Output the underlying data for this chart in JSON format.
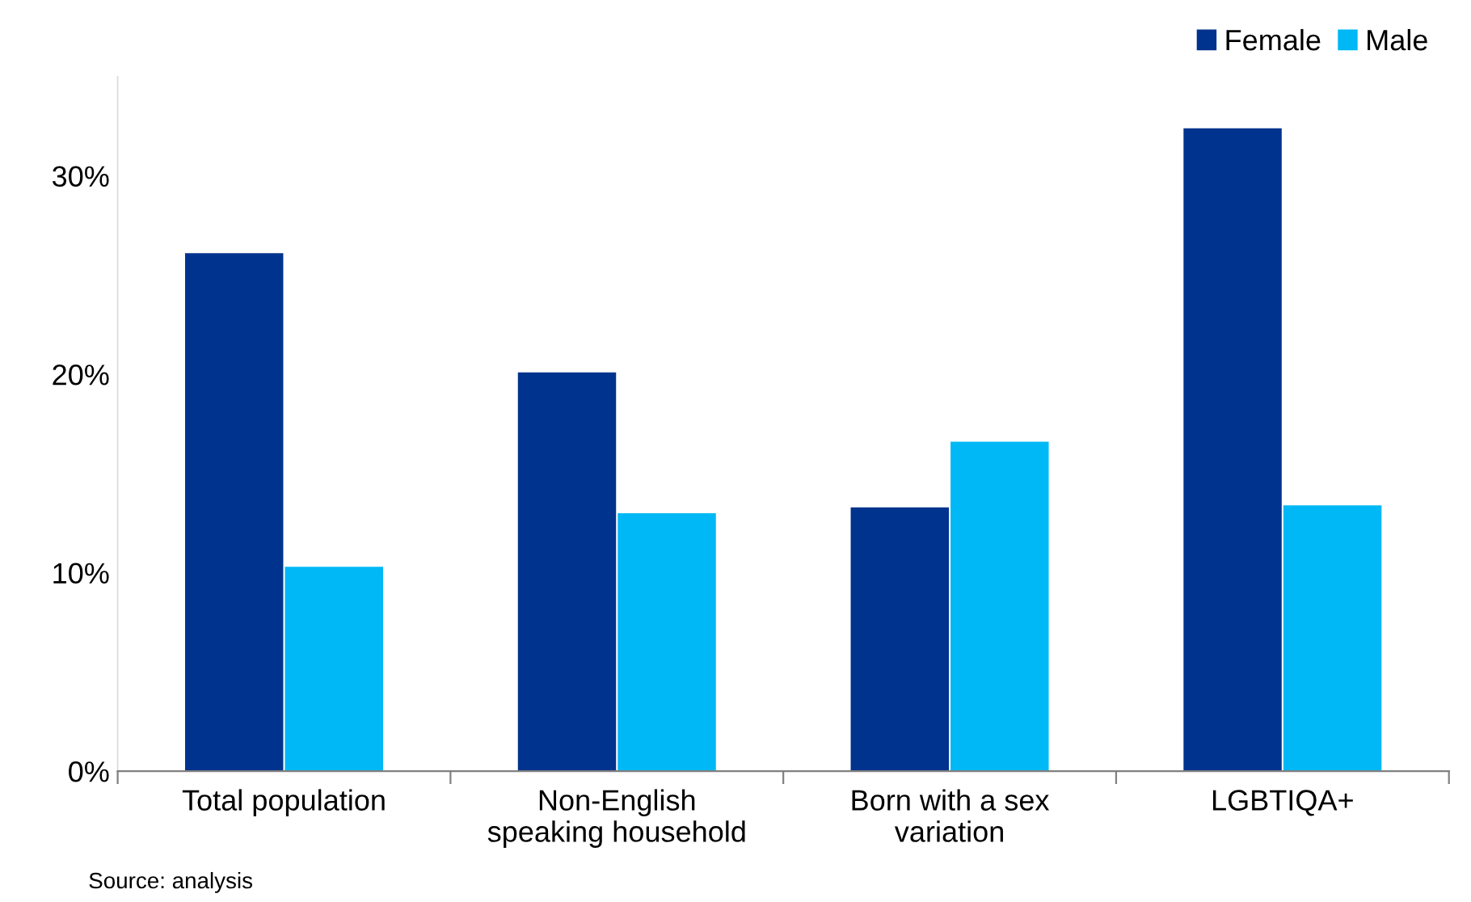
{
  "chart_data": {
    "type": "bar",
    "categories": [
      "Total population",
      "Non-English\nspeaking household",
      "Born with a sex\nvariation",
      "LGBTIQA+"
    ],
    "series": [
      {
        "name": "Female",
        "color": "#00338d",
        "values": [
          26.1,
          20.1,
          13.3,
          32.4
        ]
      },
      {
        "name": "Male",
        "color": "#00b8f5",
        "values": [
          10.3,
          13.0,
          16.6,
          13.4
        ]
      }
    ],
    "ylim": [
      0,
      35
    ],
    "yticks": [
      {
        "value": 0,
        "label": "0%"
      },
      {
        "value": 10,
        "label": "10%"
      },
      {
        "value": 20,
        "label": "20%"
      },
      {
        "value": 30,
        "label": "30%"
      }
    ],
    "legend": "top right",
    "annotations": [
      "Source: analysis"
    ]
  }
}
